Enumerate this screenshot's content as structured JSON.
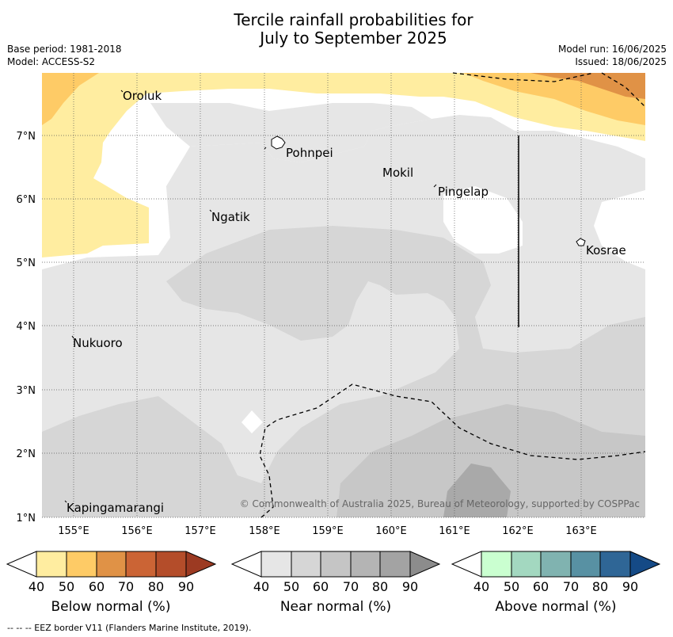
{
  "header": {
    "title_line1": "Tercile rainfall probabilities for",
    "title_line2": "July to September 2025",
    "base_period": "Base period: 1981-2018",
    "model": "Model: ACCESS-S2",
    "model_run": "Model run: 16/06/2025",
    "issued": "Issued: 18/06/2025"
  },
  "map": {
    "lon_ticks": [
      "155°E",
      "156°E",
      "157°E",
      "158°E",
      "159°E",
      "160°E",
      "161°E",
      "162°E",
      "163°E"
    ],
    "lat_ticks": [
      "7°N",
      "6°N",
      "5°N",
      "4°N",
      "3°N",
      "2°N",
      "1°N"
    ],
    "places": [
      "Oroluk",
      "Pohnpei",
      "Mokil",
      "Pingelap",
      "Ngatik",
      "Kosrae",
      "Nukuoro",
      "Kapingamarangi"
    ],
    "copyright": "© Commonwealth of Australia 2025, Bureau of Meteorology, supported by COSPPac"
  },
  "colorbars": [
    {
      "name": "Below normal (%)",
      "ticks": [
        "40",
        "50",
        "60",
        "70",
        "80",
        "90"
      ],
      "colors": [
        "#ffffff",
        "#ffeda0",
        "#fecb66",
        "#e09246",
        "#cb6435",
        "#b44d2a",
        "#9c3a22"
      ]
    },
    {
      "name": "Near normal (%)",
      "ticks": [
        "40",
        "50",
        "60",
        "70",
        "80",
        "90"
      ],
      "colors": [
        "#ffffff",
        "#e6e6e6",
        "#d6d6d6",
        "#c5c5c5",
        "#b4b4b4",
        "#a3a3a3",
        "#8c8c8c"
      ]
    },
    {
      "name": "Above normal (%)",
      "ticks": [
        "40",
        "50",
        "60",
        "70",
        "80",
        "90"
      ],
      "colors": [
        "#ffffff",
        "#caffd0",
        "#a3d8c0",
        "#80b3b0",
        "#5891a3",
        "#2f6696",
        "#154a86"
      ]
    }
  ],
  "footnote": "-- -- -- EEZ border V11 (Flanders Marine Institute, 2019)."
}
